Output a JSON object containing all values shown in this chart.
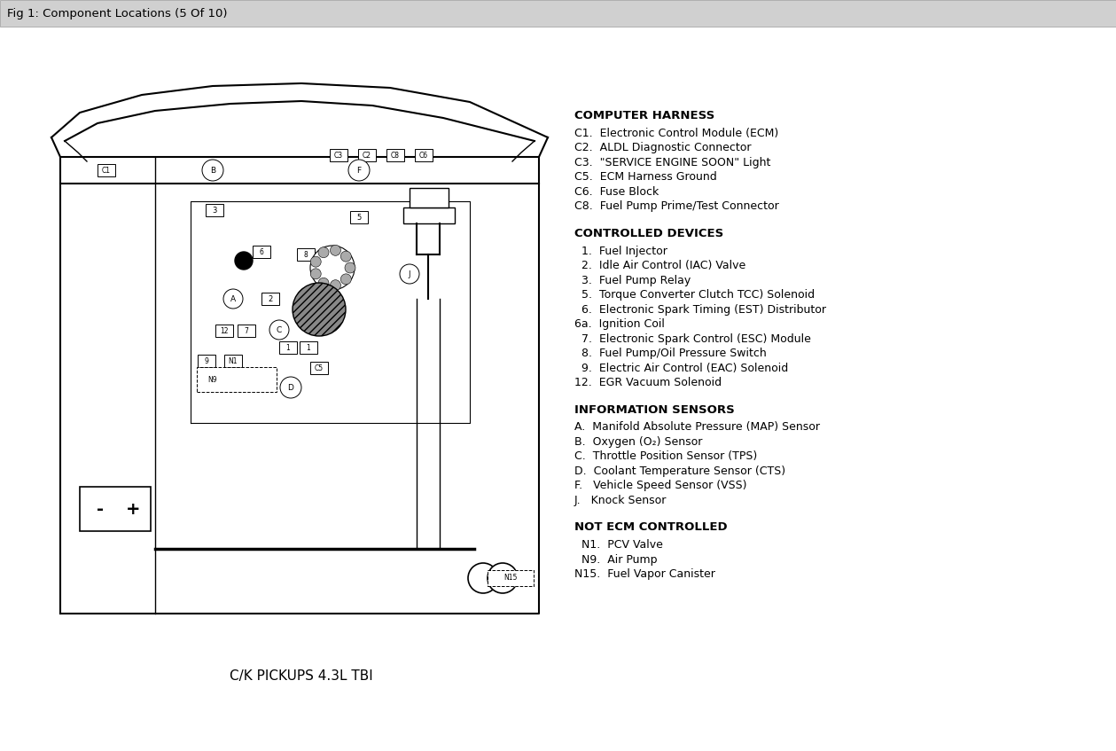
{
  "title": "Fig 1: Component Locations (5 Of 10)",
  "title_bg": "#d0d0d0",
  "caption": "C/K PICKUPS 4.3L TBI",
  "bg_color": "#ffffff",
  "right_text": {
    "computer_harness_header": "COMPUTER HARNESS",
    "computer_harness_items": [
      "C1.  Electronic Control Module (ECM)",
      "C2.  ALDL Diagnostic Connector",
      "C3.  \"SERVICE ENGINE SOON\" Light",
      "C5.  ECM Harness Ground",
      "C6.  Fuse Block",
      "C8.  Fuel Pump Prime/Test Connector"
    ],
    "controlled_devices_header": "CONTROLLED DEVICES",
    "controlled_devices_items": [
      "  1.  Fuel Injector",
      "  2.  Idle Air Control (IAC) Valve",
      "  3.  Fuel Pump Relay",
      "  5.  Torque Converter Clutch TCC) Solenoid",
      "  6.  Electronic Spark Timing (EST) Distributor",
      "6a.  Ignition Coil",
      "  7.  Electronic Spark Control (ESC) Module",
      "  8.  Fuel Pump/Oil Pressure Switch",
      "  9.  Electric Air Control (EAC) Solenoid",
      "12.  EGR Vacuum Solenoid"
    ],
    "information_sensors_header": "INFORMATION SENSORS",
    "information_sensors_items": [
      "A.  Manifold Absolute Pressure (MAP) Sensor",
      "B.  Oxygen (O₂) Sensor",
      "C.  Throttle Position Sensor (TPS)",
      "D.  Coolant Temperature Sensor (CTS)",
      "F.   Vehicle Speed Sensor (VSS)",
      "J.   Knock Sensor"
    ],
    "not_ecm_header": "NOT ECM CONTROLLED",
    "not_ecm_items": [
      "  N1.  PCV Valve",
      "  N9.  Air Pump",
      "N15.  Fuel Vapor Canister"
    ]
  }
}
